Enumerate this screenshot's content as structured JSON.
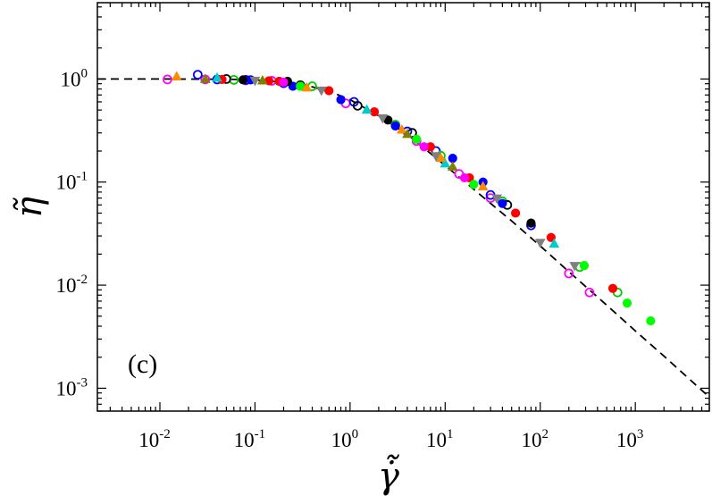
{
  "chart_data": {
    "type": "scatter",
    "title": "",
    "xlabel": "γ̇̃",
    "ylabel": "η̃",
    "xscale": "log",
    "yscale": "log",
    "xlim": [
      0.0022,
      6000
    ],
    "ylim": [
      0.0006,
      5.5
    ],
    "grid": false,
    "legend": "none",
    "annotation": "(c)",
    "x_ticks": [
      {
        "base": "10",
        "exp": "-2",
        "value": 0.01
      },
      {
        "base": "10",
        "exp": "-1",
        "value": 0.1
      },
      {
        "base": "10",
        "exp": "0",
        "value": 1
      },
      {
        "base": "10",
        "exp": "1",
        "value": 10
      },
      {
        "base": "10",
        "exp": "2",
        "value": 100
      },
      {
        "base": "10",
        "exp": "3",
        "value": 1000
      }
    ],
    "y_ticks": [
      {
        "base": "10",
        "exp": "-3",
        "value": 0.001
      },
      {
        "base": "10",
        "exp": "-2",
        "value": 0.01
      },
      {
        "base": "10",
        "exp": "-1",
        "value": 0.1
      },
      {
        "base": "10",
        "exp": "0",
        "value": 1
      }
    ],
    "fit_curve": {
      "style": "dashed",
      "color": "#000000",
      "x": [
        0.0022,
        0.01,
        0.05,
        0.1,
        0.2,
        0.4,
        0.7,
        1,
        2,
        4,
        10,
        20,
        50,
        100,
        200,
        500,
        1000,
        2000,
        6000
      ],
      "y": [
        1.0,
        1.0,
        0.995,
        0.98,
        0.93,
        0.84,
        0.72,
        0.63,
        0.44,
        0.29,
        0.145,
        0.085,
        0.042,
        0.024,
        0.0135,
        0.0064,
        0.0036,
        0.00205,
        0.00082
      ]
    },
    "series": [
      {
        "marker": "circle-open",
        "color": "#ff00ff",
        "x": [
          0.012,
          0.03,
          0.08,
          0.15,
          0.3,
          0.9,
          5,
          14,
          30,
          200,
          330
        ],
        "y": [
          0.99,
          0.99,
          0.97,
          0.96,
          0.86,
          0.58,
          0.25,
          0.12,
          0.07,
          0.013,
          0.0085
        ]
      },
      {
        "marker": "circle-open",
        "color": "#0000ff",
        "x": [
          0.025,
          0.04,
          0.08,
          0.2,
          1.1,
          4,
          8,
          30,
          80
        ],
        "y": [
          1.1,
          0.99,
          0.98,
          0.91,
          0.6,
          0.31,
          0.2,
          0.075,
          0.038
        ]
      },
      {
        "marker": "circle-open",
        "color": "#00cc00",
        "x": [
          0.06,
          0.4,
          3,
          9,
          40,
          260,
          650
        ],
        "y": [
          0.98,
          0.85,
          0.36,
          0.18,
          0.065,
          0.015,
          0.0085
        ]
      },
      {
        "marker": "circle-open",
        "color": "#000000",
        "x": [
          0.05,
          0.3,
          1.2,
          4.5,
          45
        ],
        "y": [
          1.0,
          0.87,
          0.55,
          0.3,
          0.06
        ]
      },
      {
        "marker": "circle-filled",
        "color": "#ff0000",
        "x": [
          0.045,
          0.14,
          0.18,
          0.6,
          1.8,
          7,
          18,
          55,
          130,
          580
        ],
        "y": [
          0.99,
          0.96,
          0.95,
          0.77,
          0.48,
          0.22,
          0.11,
          0.05,
          0.029,
          0.0093
        ]
      },
      {
        "marker": "circle-filled",
        "color": "#0000ff",
        "x": [
          0.09,
          0.25,
          0.8,
          3,
          12,
          25,
          40
        ],
        "y": [
          0.98,
          0.85,
          0.63,
          0.35,
          0.17,
          0.1,
          0.062
        ]
      },
      {
        "marker": "circle-filled",
        "color": "#000000",
        "x": [
          0.075,
          0.22,
          2.5,
          80
        ],
        "y": [
          0.98,
          0.95,
          0.4,
          0.04
        ]
      },
      {
        "marker": "circle-filled",
        "color": "#00ff00",
        "x": [
          0.3,
          5,
          20,
          290,
          820,
          1450
        ],
        "y": [
          0.85,
          0.26,
          0.095,
          0.0155,
          0.0067,
          0.0045
        ]
      },
      {
        "marker": "circle-filled",
        "color": "#ff00ff",
        "x": [
          0.2,
          6,
          16
        ],
        "y": [
          0.93,
          0.22,
          0.11
        ]
      },
      {
        "marker": "triangle-up",
        "color": "#00cccc",
        "x": [
          0.04,
          1.5,
          10,
          140
        ],
        "y": [
          1.02,
          0.5,
          0.15,
          0.025
        ]
      },
      {
        "marker": "triangle-up",
        "color": "#ff8c00",
        "x": [
          0.015,
          0.35,
          3.5,
          9,
          25
        ],
        "y": [
          1.05,
          0.82,
          0.32,
          0.17,
          0.09
        ]
      },
      {
        "marker": "triangle-down",
        "color": "#808080",
        "x": [
          0.1,
          0.5,
          2.2,
          8,
          35,
          100,
          230
        ],
        "y": [
          0.97,
          0.78,
          0.42,
          0.18,
          0.07,
          0.026,
          0.0155
        ]
      },
      {
        "marker": "triangle-up",
        "color": "#808000",
        "x": [
          0.03,
          0.12,
          4,
          12
        ],
        "y": [
          0.99,
          0.96,
          0.29,
          0.14
        ]
      }
    ]
  }
}
